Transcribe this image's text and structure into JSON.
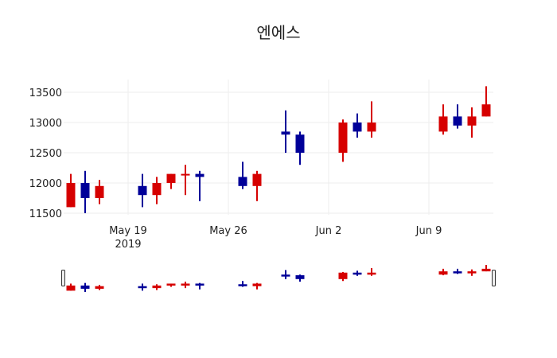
{
  "chart_data": {
    "type": "candlestick",
    "title": "엔에스",
    "xlabel": "",
    "ylabel": "",
    "ylim": [
      11450,
      13750
    ],
    "yticks": [
      11500,
      12000,
      12500,
      13000,
      13500
    ],
    "xticks": [
      {
        "date": "2019-05-19",
        "label": "May 19",
        "sublabel": "2019"
      },
      {
        "date": "2019-05-26",
        "label": "May 26",
        "sublabel": ""
      },
      {
        "date": "2019-06-02",
        "label": "Jun 2",
        "sublabel": ""
      },
      {
        "date": "2019-06-09",
        "label": "Jun 9",
        "sublabel": ""
      }
    ],
    "increasing_color": "#d60000",
    "decreasing_color": "#000099",
    "grid": true,
    "rangeslider": true,
    "candles": [
      {
        "date": "2019-05-15",
        "open": 11600,
        "high": 12150,
        "low": 11600,
        "close": 12000
      },
      {
        "date": "2019-05-16",
        "open": 12000,
        "high": 12200,
        "low": 11500,
        "close": 11750
      },
      {
        "date": "2019-05-17",
        "open": 11750,
        "high": 12050,
        "low": 11650,
        "close": 11950
      },
      {
        "date": "2019-05-20",
        "open": 11950,
        "high": 12150,
        "low": 11600,
        "close": 11800
      },
      {
        "date": "2019-05-21",
        "open": 11800,
        "high": 12100,
        "low": 11650,
        "close": 12000
      },
      {
        "date": "2019-05-22",
        "open": 12000,
        "high": 12150,
        "low": 11900,
        "close": 12150
      },
      {
        "date": "2019-05-23",
        "open": 12130,
        "high": 12300,
        "low": 11800,
        "close": 12150
      },
      {
        "date": "2019-05-24",
        "open": 12150,
        "high": 12200,
        "low": 11700,
        "close": 12100
      },
      {
        "date": "2019-05-27",
        "open": 12100,
        "high": 12350,
        "low": 11900,
        "close": 11950
      },
      {
        "date": "2019-05-28",
        "open": 11950,
        "high": 12200,
        "low": 11700,
        "close": 12150
      },
      {
        "date": "2019-05-30",
        "open": 12850,
        "high": 13200,
        "low": 12500,
        "close": 12800
      },
      {
        "date": "2019-05-31",
        "open": 12800,
        "high": 12850,
        "low": 12300,
        "close": 12500
      },
      {
        "date": "2019-06-03",
        "open": 12500,
        "high": 13050,
        "low": 12350,
        "close": 13000
      },
      {
        "date": "2019-06-04",
        "open": 13000,
        "high": 13150,
        "low": 12750,
        "close": 12850
      },
      {
        "date": "2019-06-05",
        "open": 12850,
        "high": 13350,
        "low": 12750,
        "close": 13000
      },
      {
        "date": "2019-06-10",
        "open": 12850,
        "high": 13300,
        "low": 12800,
        "close": 13100
      },
      {
        "date": "2019-06-11",
        "open": 13100,
        "high": 13300,
        "low": 12900,
        "close": 12950
      },
      {
        "date": "2019-06-12",
        "open": 12950,
        "high": 13250,
        "low": 12750,
        "close": 13100
      },
      {
        "date": "2019-06-13",
        "open": 13100,
        "high": 13600,
        "low": 13100,
        "close": 13300
      }
    ]
  }
}
